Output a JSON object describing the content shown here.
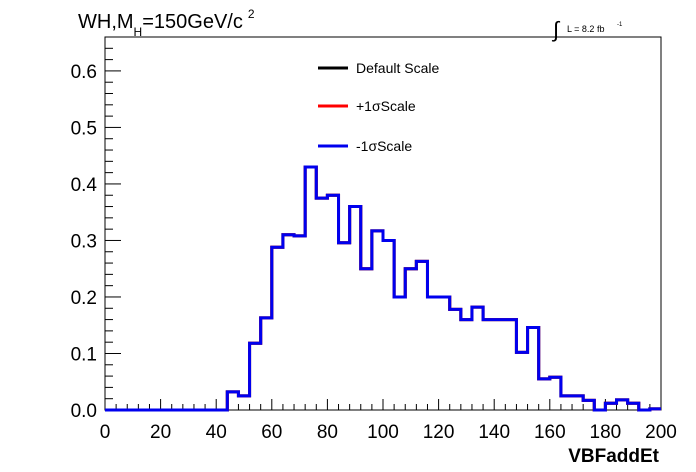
{
  "chart_data": {
    "type": "line",
    "title": {
      "prefix": "WH,M",
      "subscript": "H",
      "suffix": "=150GeV/c",
      "superscript": "2"
    },
    "luminosity": {
      "symbol": "∫",
      "text": "L = 8.2 fb",
      "superscript": "-1"
    },
    "xlabel": "VBFaddEt",
    "ylabel": "",
    "xlim": [
      0,
      200
    ],
    "ylim": [
      0,
      0.66
    ],
    "x_ticks": [
      "0",
      "20",
      "40",
      "60",
      "80",
      "100",
      "120",
      "140",
      "160",
      "180",
      "200"
    ],
    "y_ticks": [
      "0.0",
      "0.1",
      "0.2",
      "0.3",
      "0.4",
      "0.5",
      "0.6"
    ],
    "x_tick_values": [
      0,
      20,
      40,
      60,
      80,
      100,
      120,
      140,
      160,
      180,
      200
    ],
    "y_tick_values": [
      0,
      0.1,
      0.2,
      0.3,
      0.4,
      0.5,
      0.6
    ],
    "bin_edges": [
      0,
      4,
      8,
      12,
      16,
      20,
      24,
      28,
      32,
      36,
      40,
      44,
      48,
      52,
      56,
      60,
      64,
      68,
      72,
      76,
      80,
      84,
      88,
      92,
      96,
      100,
      104,
      108,
      112,
      116,
      120,
      124,
      128,
      132,
      136,
      140,
      144,
      148,
      152,
      156,
      160,
      164,
      168,
      172,
      176,
      180,
      184,
      188,
      192,
      196,
      200
    ],
    "legend_position": "top-center",
    "grid": false,
    "series": [
      {
        "name": "Default Scale",
        "color": "#000000",
        "values": [
          0,
          0,
          0,
          0,
          0,
          0,
          0,
          0,
          0,
          0,
          0,
          0.032,
          0.025,
          0.118,
          0.163,
          0.288,
          0.31,
          0.308,
          0.43,
          0.375,
          0.38,
          0.296,
          0.36,
          0.25,
          0.317,
          0.3,
          0.2,
          0.25,
          0.263,
          0.2,
          0.2,
          0.178,
          0.16,
          0.182,
          0.16,
          0.16,
          0.16,
          0.102,
          0.146,
          0.055,
          0.058,
          0.025,
          0.025,
          0.017,
          0,
          0.012,
          0.018,
          0.012,
          0,
          0.002
        ]
      },
      {
        "name": "+1σScale",
        "color": "#ff0000",
        "values": [
          0,
          0,
          0,
          0,
          0,
          0,
          0,
          0,
          0,
          0,
          0,
          0.032,
          0.025,
          0.118,
          0.163,
          0.288,
          0.31,
          0.308,
          0.43,
          0.375,
          0.38,
          0.296,
          0.36,
          0.25,
          0.317,
          0.3,
          0.2,
          0.25,
          0.263,
          0.2,
          0.2,
          0.178,
          0.16,
          0.182,
          0.16,
          0.16,
          0.16,
          0.102,
          0.146,
          0.055,
          0.058,
          0.025,
          0.025,
          0.017,
          0,
          0.012,
          0.018,
          0.012,
          0,
          0.002
        ]
      },
      {
        "name": "-1σScale",
        "color": "#0000ee",
        "values": [
          0,
          0,
          0,
          0,
          0,
          0,
          0,
          0,
          0,
          0,
          0,
          0.032,
          0.025,
          0.118,
          0.163,
          0.288,
          0.31,
          0.308,
          0.43,
          0.375,
          0.38,
          0.296,
          0.36,
          0.25,
          0.317,
          0.3,
          0.2,
          0.25,
          0.263,
          0.2,
          0.2,
          0.178,
          0.16,
          0.182,
          0.16,
          0.16,
          0.16,
          0.102,
          0.146,
          0.055,
          0.058,
          0.025,
          0.025,
          0.017,
          0,
          0.012,
          0.018,
          0.012,
          0,
          0.002
        ]
      }
    ]
  }
}
